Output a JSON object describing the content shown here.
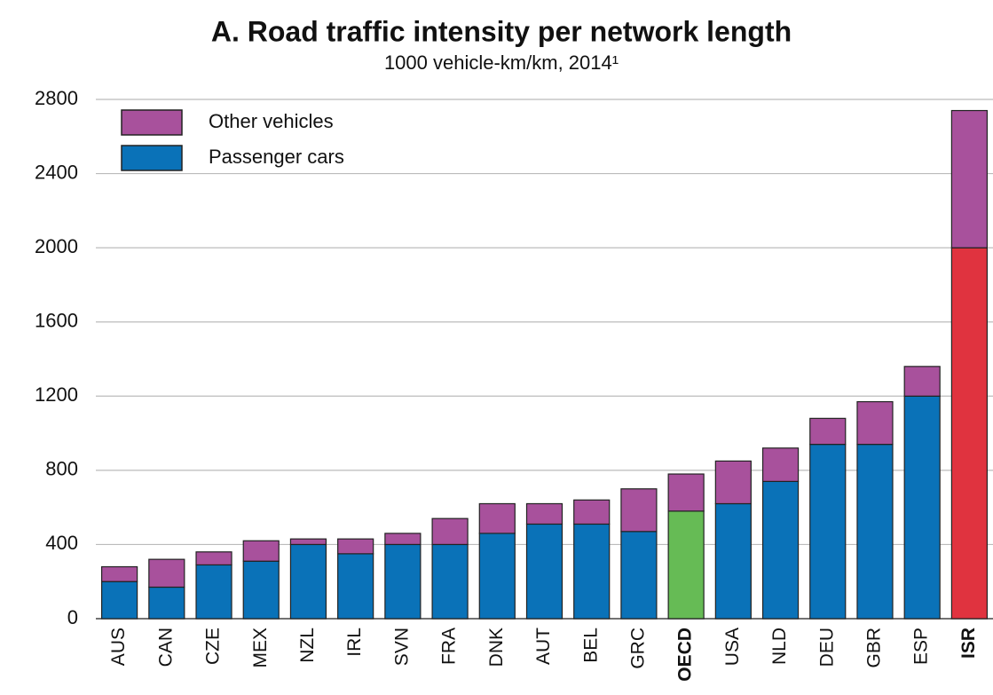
{
  "chart_data": {
    "type": "stacked-bar",
    "title": "A. Road traffic intensity per network length",
    "subtitle": "1000 vehicle-km/km, 2014¹",
    "categories": [
      "AUS",
      "CAN",
      "CZE",
      "MEX",
      "NZL",
      "IRL",
      "SVN",
      "FRA",
      "DNK",
      "AUT",
      "BEL",
      "GRC",
      "OECD",
      "USA",
      "NLD",
      "DEU",
      "GBR",
      "ESP",
      "ISR"
    ],
    "bold_categories": [
      12,
      18
    ],
    "series": [
      {
        "name": "Passenger cars",
        "color": "#0a72b8",
        "colors": [
          "#0a72b8",
          "#0a72b8",
          "#0a72b8",
          "#0a72b8",
          "#0a72b8",
          "#0a72b8",
          "#0a72b8",
          "#0a72b8",
          "#0a72b8",
          "#0a72b8",
          "#0a72b8",
          "#0a72b8",
          "#66bb55",
          "#0a72b8",
          "#0a72b8",
          "#0a72b8",
          "#0a72b8",
          "#0a72b8",
          "#e0333f"
        ],
        "values": [
          200,
          170,
          290,
          310,
          400,
          350,
          400,
          400,
          460,
          510,
          510,
          470,
          580,
          620,
          740,
          940,
          940,
          1200,
          2000
        ]
      },
      {
        "name": "Other vehicles",
        "color": "#a8519c",
        "values": [
          80,
          150,
          70,
          110,
          30,
          80,
          60,
          140,
          160,
          110,
          130,
          230,
          200,
          230,
          180,
          140,
          230,
          160,
          740
        ]
      }
    ],
    "ylim": [
      0,
      2800
    ],
    "yticks": [
      0,
      400,
      800,
      1200,
      1600,
      2000,
      2400,
      2800
    ],
    "grid": true,
    "legend": "top-left"
  }
}
